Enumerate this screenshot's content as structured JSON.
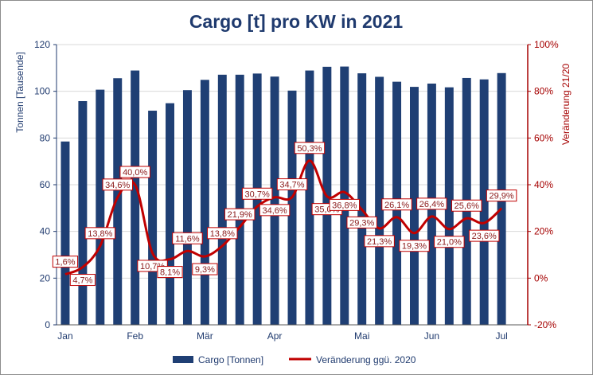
{
  "chart_data": {
    "type": "bar+line",
    "title": "Cargo [t] pro KW in 2021",
    "x_tick_labels": [
      "Jan",
      "Feb",
      "Mär",
      "Apr",
      "Mai",
      "Jun",
      "Jul"
    ],
    "x_tick_positions_week": [
      1,
      5,
      9,
      13,
      18,
      22,
      26
    ],
    "y_left": {
      "label": "Tonnen [Tausende]",
      "min": 0,
      "max": 120,
      "step": 20,
      "ticks": [
        "0",
        "20",
        "40",
        "60",
        "80",
        "100",
        "120"
      ]
    },
    "y_right": {
      "label": "Veränderung 21/20",
      "min": -20,
      "max": 100,
      "step": 20,
      "ticks": [
        "-20%",
        "0%",
        "20%",
        "40%",
        "60%",
        "80%",
        "100%"
      ]
    },
    "weeks": [
      1,
      2,
      3,
      4,
      5,
      6,
      7,
      8,
      9,
      10,
      11,
      12,
      13,
      14,
      15,
      16,
      17,
      18,
      19,
      20,
      21,
      22,
      23,
      24,
      25,
      26,
      27
    ],
    "series": [
      {
        "name": "Cargo [Tonnen]",
        "type": "bar",
        "color": "#1f3f74",
        "values": [
          78.5,
          95.8,
          100.7,
          105.6,
          108.9,
          91.7,
          94.9,
          100.5,
          104.9,
          107.1,
          107.1,
          107.6,
          106.3,
          100.3,
          108.9,
          110.5,
          110.6,
          107.7,
          106.2,
          104.1,
          101.9,
          103.3,
          101.7,
          105.7,
          105.1,
          107.8
        ]
      },
      {
        "name": "Veränderung ggü. 2020",
        "type": "line",
        "axis": "right",
        "color": "#c00000",
        "values": [
          1.6,
          4.7,
          13.8,
          34.6,
          40.0,
          10.7,
          8.1,
          11.6,
          9.3,
          13.8,
          21.9,
          30.7,
          34.6,
          34.7,
          50.3,
          35.0,
          36.8,
          29.3,
          21.3,
          26.1,
          19.3,
          26.4,
          21.0,
          25.6,
          23.6,
          29.9
        ],
        "labels": [
          "1,6%",
          "4,7%",
          "13,8%",
          "34,6%",
          "40,0%",
          "10,7%",
          "8,1%",
          "11,6%",
          "9,3%",
          "13,8%",
          "21,9%",
          "30,7%",
          "34,6%",
          "34,7%",
          "50,3%",
          "35,0%",
          "36,8%",
          "29,3%",
          "21,3%",
          "26,1%",
          "19,3%",
          "26,4%",
          "21,0%",
          "25,6%",
          "23,6%",
          "29,9%"
        ],
        "label_side": [
          "above",
          "below",
          "above",
          "above",
          "above",
          "below",
          "below",
          "above",
          "below",
          "above",
          "above",
          "above",
          "below",
          "above",
          "above",
          "below",
          "below",
          "below",
          "below",
          "above",
          "below",
          "above",
          "below",
          "above",
          "below",
          "above"
        ]
      }
    ],
    "legend": [
      "Cargo [Tonnen]",
      "Veränderung ggü. 2020"
    ],
    "legend_position": "bottom",
    "colors": {
      "left_axis": "#1f3a6e",
      "right_axis": "#a50000",
      "title": "#1f3a6e"
    }
  }
}
